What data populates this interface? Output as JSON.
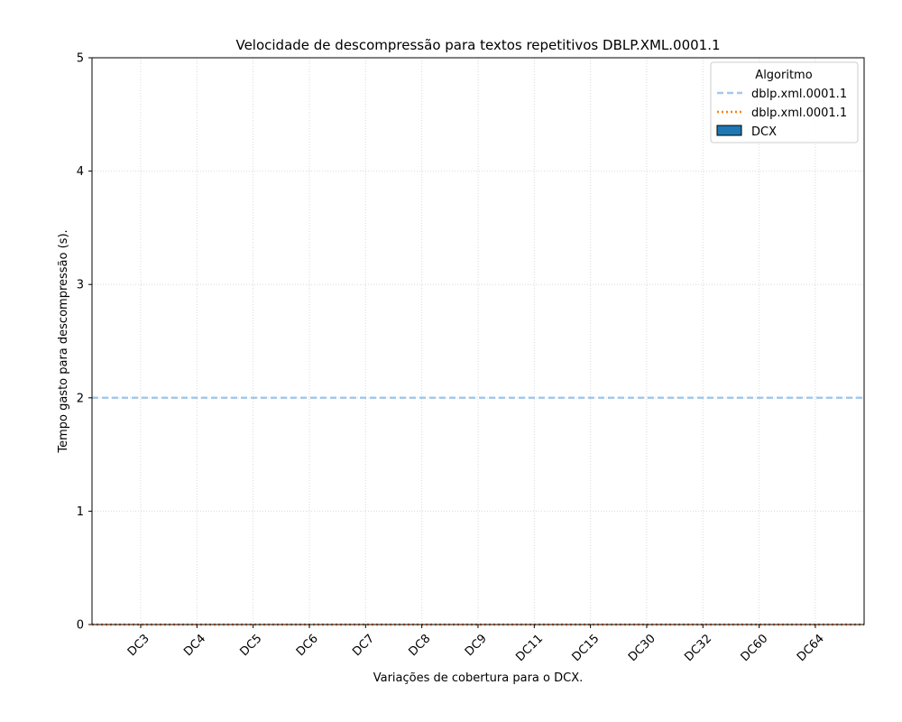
{
  "chart_data": {
    "type": "bar",
    "title": "Velocidade de descompressão para textos repetitivos DBLP.XML.0001.1",
    "xlabel": "Variações de cobertura para o DCX.",
    "ylabel": "Tempo gasto para descompressão (s).",
    "categories": [
      "DC3",
      "DC4",
      "DC5",
      "DC6",
      "DC7",
      "DC8",
      "DC9",
      "DC11",
      "DC15",
      "DC30",
      "DC32",
      "DC60",
      "DC64"
    ],
    "ylim": [
      0,
      5
    ],
    "yticks": [
      "0",
      "1",
      "2",
      "3",
      "4",
      "5"
    ],
    "grid": true,
    "legend_position": "top-right",
    "legend_title": "Algoritmo",
    "series": [
      {
        "name": "DCX",
        "kind": "bar",
        "color": "#1f77b4",
        "values": [
          0,
          0,
          0,
          0,
          0,
          0,
          0,
          0,
          0,
          0,
          0,
          0,
          0
        ]
      }
    ],
    "reference_lines": [
      {
        "name": "dblp.xml.0001.1",
        "value": 2.0,
        "color": "#a6c8e8",
        "style": "dashed"
      },
      {
        "name": "dblp.xml.0001.1",
        "value": 0.0,
        "color": "#ff7f0e",
        "style": "dotted"
      }
    ]
  }
}
